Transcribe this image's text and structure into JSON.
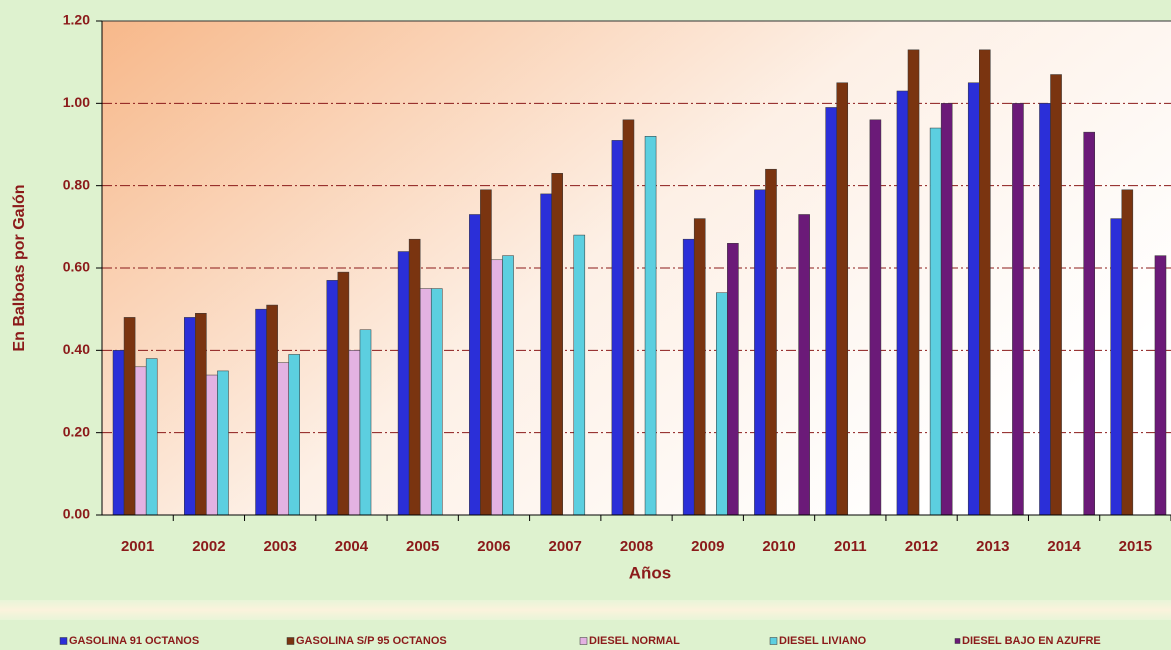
{
  "chart_data": {
    "type": "bar",
    "y_label": "En Balboas por Galón",
    "x_label": "Años",
    "categories": [
      "2001",
      "2002",
      "2003",
      "2004",
      "2005",
      "2006",
      "2007",
      "2008",
      "2009",
      "2010",
      "2011",
      "2012",
      "2013",
      "2014",
      "2015"
    ],
    "series": [
      {
        "name": "GASOLINA 91 OCTANOS",
        "color": "#2b2fd8",
        "values": [
          0.4,
          0.48,
          0.5,
          0.57,
          0.64,
          0.73,
          0.78,
          0.91,
          0.67,
          0.79,
          0.99,
          1.03,
          1.05,
          1.0,
          0.72
        ]
      },
      {
        "name": "GASOLINA S/P 95 OCTANOS",
        "color": "#7a3410",
        "values": [
          0.48,
          0.49,
          0.51,
          0.59,
          0.67,
          0.79,
          0.83,
          0.96,
          0.72,
          0.84,
          1.05,
          1.13,
          1.13,
          1.07,
          0.79
        ]
      },
      {
        "name": "DIESEL NORMAL",
        "color": "#e3b2e2",
        "values": [
          0.36,
          0.34,
          0.37,
          0.4,
          0.55,
          0.62,
          null,
          null,
          null,
          null,
          null,
          null,
          null,
          null,
          null
        ]
      },
      {
        "name": "DIESEL LIVIANO",
        "color": "#5ccfe0",
        "values": [
          0.38,
          0.35,
          0.39,
          0.45,
          0.55,
          0.63,
          0.68,
          0.92,
          0.54,
          null,
          null,
          0.94,
          null,
          null,
          null
        ]
      },
      {
        "name": "DIESEL BAJO EN AZUFRE",
        "color": "#6b1a78",
        "values": [
          null,
          null,
          null,
          null,
          null,
          null,
          null,
          null,
          0.66,
          0.73,
          0.96,
          1.0,
          1.0,
          0.93,
          0.63
        ]
      }
    ],
    "ylim": [
      0,
      1.2
    ],
    "yticks": [
      {
        "value": 0,
        "label": "0.00"
      },
      {
        "value": 0.2,
        "label": "0.20"
      },
      {
        "value": 0.4,
        "label": "0.40"
      },
      {
        "value": 0.6,
        "label": "0.60"
      },
      {
        "value": 0.8,
        "label": "0.80"
      },
      {
        "value": 1.0,
        "label": "1.00"
      },
      {
        "value": 1.2,
        "label": "1.20"
      }
    ],
    "grid": true,
    "legend": "bottom"
  }
}
